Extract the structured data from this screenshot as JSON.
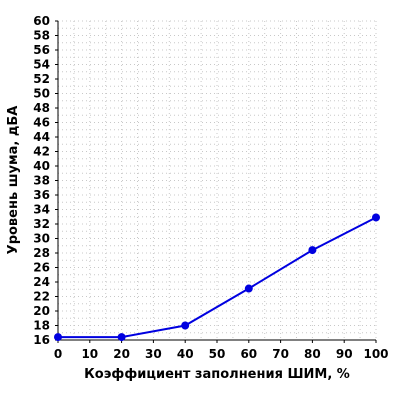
{
  "chart_data": {
    "type": "line",
    "xlabel": "Коэффициент заполнения ШИМ, %",
    "ylabel": "Уровень шума, дБА",
    "xlim": [
      0,
      100
    ],
    "ylim": [
      16,
      60
    ],
    "xticks": [
      0,
      10,
      20,
      30,
      40,
      50,
      60,
      70,
      80,
      90,
      100
    ],
    "yticks": [
      16,
      18,
      20,
      22,
      24,
      26,
      28,
      30,
      32,
      34,
      36,
      38,
      40,
      42,
      44,
      46,
      48,
      50,
      52,
      54,
      56,
      58,
      60
    ],
    "grid": true,
    "series": [
      {
        "color": "#0000e0",
        "x": [
          0,
          20,
          40,
          60,
          80,
          100
        ],
        "y": [
          16.4,
          16.4,
          18.0,
          23.1,
          28.4,
          32.9
        ]
      }
    ]
  }
}
